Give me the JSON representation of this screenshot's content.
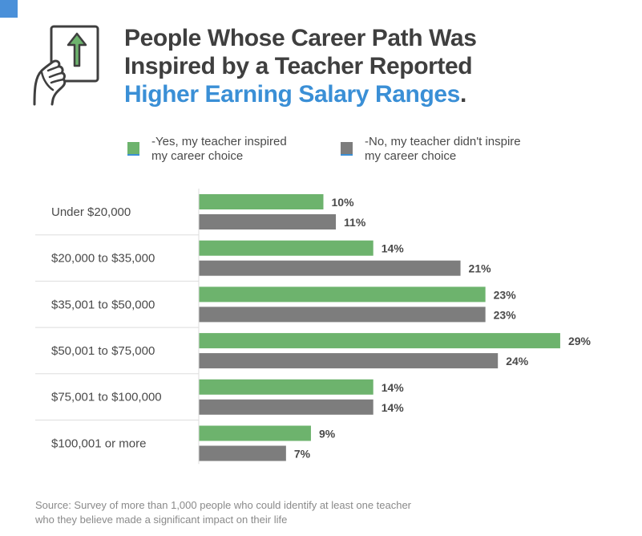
{
  "title": {
    "line1": "People Whose Career Path Was",
    "line2": "Inspired by a Teacher Reported",
    "line3": "Higher Earning Salary Ranges",
    "period": "."
  },
  "legend": [
    {
      "line1": "-Yes, my teacher inspired",
      "line2": "my career choice",
      "color": "#6db36d"
    },
    {
      "line1": "-No, my teacher didn't inspire",
      "line2": "my career choice",
      "color": "#7d7d7d"
    }
  ],
  "source": {
    "line1": "Source: Survey of more than 1,000 people who could identify at least one teacher",
    "line2": "who they believe made a significant impact on their life"
  },
  "chart_data": {
    "type": "bar",
    "orientation": "horizontal",
    "categories": [
      "Under $20,000",
      "$20,000 to $35,000",
      "$35,001 to $50,000",
      "$50,001 to $75,000",
      "$75,001 to $100,000",
      "$100,001 or more"
    ],
    "series": [
      {
        "values": [
          10,
          14,
          23,
          29,
          14,
          9
        ],
        "labels": [
          "10%",
          "14%",
          "23%",
          "29%",
          "14%",
          "9%"
        ],
        "color": "#6db36d"
      },
      {
        "values": [
          11,
          21,
          23,
          24,
          14,
          7
        ],
        "labels": [
          "11%",
          "21%",
          "23%",
          "24%",
          "14%",
          "7%"
        ],
        "color": "#7d7d7d"
      }
    ],
    "unit": "%",
    "grid": false
  }
}
